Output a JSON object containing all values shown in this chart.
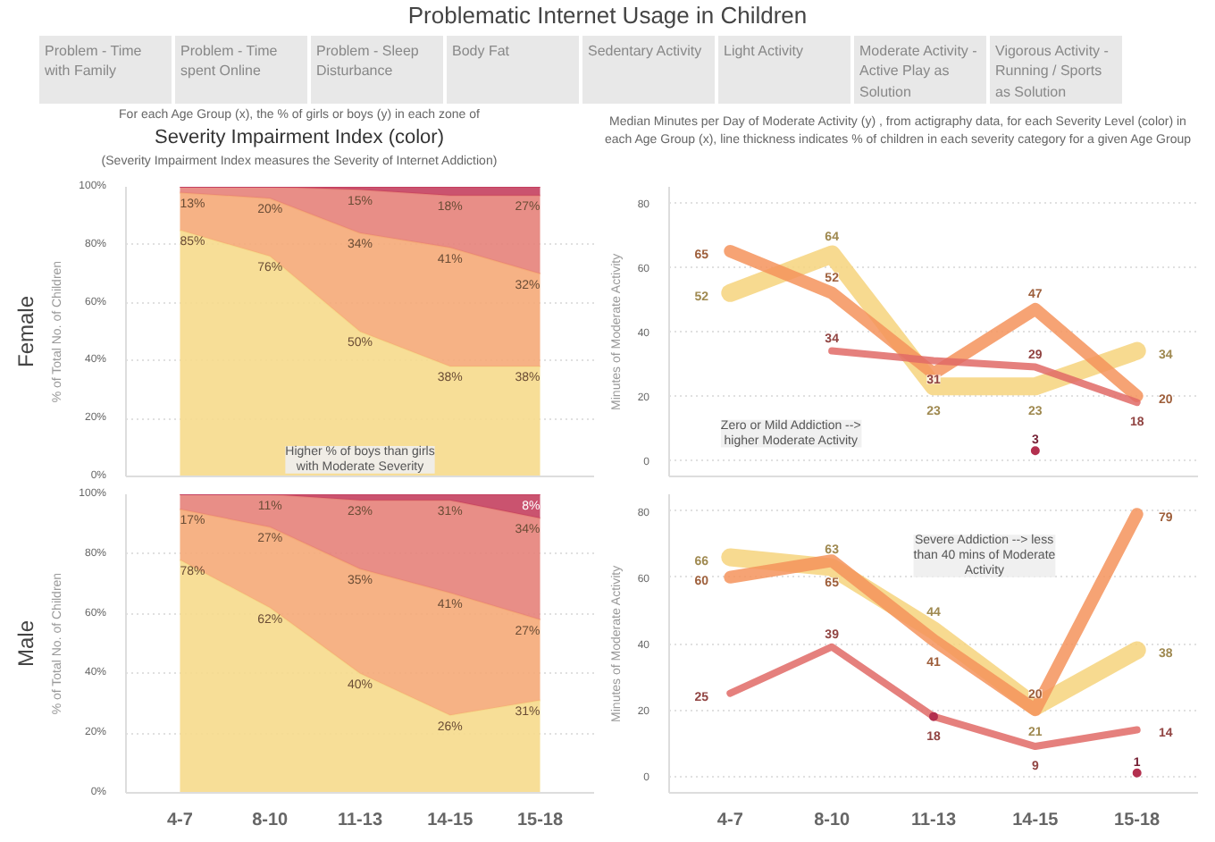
{
  "chart_data": [
    {
      "type": "other",
      "title": "Problematic Internet Usage in Children",
      "annotations": [
        "Problem - Time with Family",
        "Problem - Time spent Online",
        "Problem - Sleep Disturbance",
        "Body Fat",
        "Sedentary Activity",
        "Light Activity",
        "Moderate Activity - Active Play as Solution",
        "Vigorous Activity - Running / Sports as Solution",
        "For each Age Group (x), the % of girls or boys (y) in each zone of",
        "Severity Impairment Index (color)",
        "(Severity Impairment Index measures the Severity of Internet Addiction)",
        "Median Minutes per Day of Moderate Activity (y) , from actigraphy data, for each Severity Level (color) in each Age Group (x), line thickness indicates % of children in each severity category for a given Age Group"
      ]
    },
    {
      "type": "area",
      "stacked": true,
      "title": "Female",
      "ylabel": "% of Total No. of Children",
      "categories": [
        "4-7",
        "8-10",
        "11-13",
        "14-15",
        "15-18"
      ],
      "ylim": [
        0,
        100
      ],
      "yticks": [
        {
          "value": 0,
          "label": "0%"
        },
        {
          "value": 20,
          "label": "20%"
        },
        {
          "value": 40,
          "label": "40%"
        },
        {
          "value": 60,
          "label": "60%"
        },
        {
          "value": 80,
          "label": "80%"
        },
        {
          "value": 100,
          "label": "100%"
        }
      ],
      "grid": "y",
      "tick_labels": "y",
      "annotations": [
        "Higher % of boys than girls with Moderate Severity"
      ],
      "series": [
        {
          "color": "#f6da8c",
          "values": [
            85,
            76,
            50,
            38,
            38
          ],
          "value_labels": [
            "85%",
            "76%",
            "50%",
            "38%",
            "38%"
          ]
        },
        {
          "color": "#f5aa78",
          "values": [
            13,
            20,
            34,
            41,
            32
          ],
          "value_labels": [
            "13%",
            "20%",
            "34%",
            "41%",
            "32%"
          ]
        },
        {
          "color": "#e5827a",
          "values": [
            2,
            4,
            15,
            18,
            27
          ],
          "value_labels": [
            null,
            null,
            "15%",
            "18%",
            "27%"
          ]
        },
        {
          "color": "#c4405f",
          "values": [
            0,
            0,
            1,
            3,
            3
          ],
          "value_labels": [
            null,
            null,
            null,
            null,
            null
          ]
        }
      ]
    },
    {
      "type": "line",
      "ylabel": "Minutes of Moderate Activity",
      "categories": [
        "4-7",
        "8-10",
        "11-13",
        "14-15",
        "15-18"
      ],
      "ylim": [
        -5,
        85
      ],
      "yticks": [
        0,
        20,
        40,
        60,
        80
      ],
      "grid": "y",
      "tick_labels": "y",
      "annotations": [
        "Zero or Mild Addiction --> higher Moderate Activity"
      ],
      "series": [
        {
          "color": "#f6d47c",
          "values": [
            52,
            64,
            23,
            23,
            34
          ],
          "value_labels": [
            "52",
            "64",
            "23",
            "23",
            "34"
          ]
        },
        {
          "color": "#f4935c",
          "values": [
            65,
            52,
            27,
            47,
            20
          ],
          "value_labels": [
            "65",
            "52",
            null,
            "47",
            "20"
          ]
        },
        {
          "color": "#e06a66",
          "values": [
            null,
            34,
            31,
            29,
            18
          ],
          "value_labels": [
            null,
            "34",
            "31",
            "29",
            "18"
          ]
        },
        {
          "type": "scatter",
          "color": "#b3304f",
          "values": [
            null,
            null,
            null,
            3,
            null
          ],
          "value_labels": [
            null,
            null,
            null,
            "3",
            null
          ]
        }
      ]
    },
    {
      "type": "area",
      "stacked": true,
      "title": "Male",
      "ylabel": "% of Total No. of Children",
      "categories": [
        "4-7",
        "8-10",
        "11-13",
        "14-15",
        "15-18"
      ],
      "ylim": [
        0,
        100
      ],
      "yticks": [
        {
          "value": 0,
          "label": "0%"
        },
        {
          "value": 20,
          "label": "20%"
        },
        {
          "value": 40,
          "label": "40%"
        },
        {
          "value": 60,
          "label": "60%"
        },
        {
          "value": 80,
          "label": "80%"
        },
        {
          "value": 100,
          "label": "100%"
        }
      ],
      "grid": "y",
      "series": [
        {
          "color": "#f6da8c",
          "values": [
            78,
            62,
            40,
            26,
            31
          ],
          "value_labels": [
            "78%",
            "62%",
            "40%",
            "26%",
            "31%"
          ]
        },
        {
          "color": "#f5aa78",
          "values": [
            17,
            27,
            35,
            41,
            27
          ],
          "value_labels": [
            "17%",
            "27%",
            "35%",
            "41%",
            "27%"
          ]
        },
        {
          "color": "#e5827a",
          "values": [
            5,
            11,
            23,
            31,
            34
          ],
          "value_labels": [
            null,
            "11%",
            "23%",
            "31%",
            "34%"
          ]
        },
        {
          "color": "#c4405f",
          "values": [
            0,
            0,
            2,
            2,
            8
          ],
          "value_labels": [
            null,
            null,
            null,
            null,
            "8%"
          ]
        }
      ]
    },
    {
      "type": "line",
      "ylabel": "Minutes of Moderate Activity",
      "categories": [
        "4-7",
        "8-10",
        "11-13",
        "14-15",
        "15-18"
      ],
      "ylim": [
        -5,
        85
      ],
      "yticks": [
        0,
        20,
        40,
        60,
        80
      ],
      "grid": "y",
      "annotations": [
        "Severe Addiction --> less than 40 mins of Moderate Activity"
      ],
      "series": [
        {
          "color": "#f6d47c",
          "values": [
            66,
            63,
            44,
            21,
            38
          ],
          "value_labels": [
            "66",
            "63",
            "44",
            "21",
            "38"
          ]
        },
        {
          "color": "#f4935c",
          "values": [
            60,
            65,
            41,
            20,
            79
          ],
          "value_labels": [
            "60",
            "65",
            "41",
            "20",
            "79"
          ]
        },
        {
          "color": "#e06a66",
          "values": [
            25,
            39,
            18,
            9,
            14
          ],
          "value_labels": [
            "25",
            "39",
            "18",
            "9",
            "14"
          ]
        },
        {
          "type": "scatter",
          "color": "#b3304f",
          "values": [
            null,
            null,
            18,
            null,
            1
          ],
          "value_labels": [
            null,
            null,
            null,
            null,
            "1"
          ]
        }
      ]
    }
  ]
}
